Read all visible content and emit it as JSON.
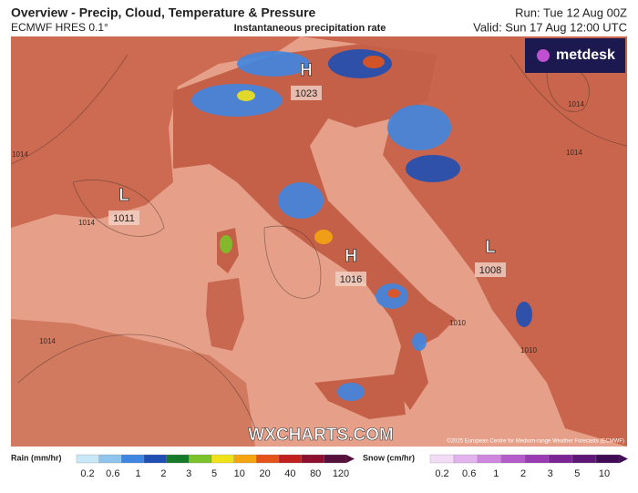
{
  "header": {
    "title": "Overview - Precip, Cloud, Temperature & Pressure",
    "model": "ECMWF HRES 0.1°",
    "subtitle": "Instantaneous precipitation rate",
    "run": "Run: Tue 12 Aug 00Z",
    "valid": "Valid: Sun 17 Aug 12:00 UTC"
  },
  "logo": "metdesk",
  "watermark": "WXCHARTS.COM",
  "credit": "©2025 European Centre for Medium-range Weather Forecasts (ECMWF)",
  "pressure_centers": [
    {
      "type": "H",
      "value": 1023
    },
    {
      "type": "L",
      "value": 1011
    },
    {
      "type": "H",
      "value": 1016
    },
    {
      "type": "L",
      "value": 1008
    }
  ],
  "isobar_labels": [
    1014,
    1014,
    1014,
    1014,
    1010,
    1010,
    1014
  ],
  "legend": {
    "rain": {
      "label": "Rain (mm/hr)",
      "ticks": [
        0.2,
        0.6,
        1,
        2,
        3,
        5,
        10,
        20,
        40,
        80,
        120
      ],
      "colors": [
        "#c9e8f7",
        "#8fc4ef",
        "#3f86e0",
        "#1f4fb4",
        "#157a2a",
        "#7cc22a",
        "#efe21a",
        "#f5a512",
        "#e5531a",
        "#c21f1f",
        "#8e1030",
        "#55103c"
      ]
    },
    "snow": {
      "label": "Snow (cm/hr)",
      "ticks": [
        0.2,
        0.6,
        1,
        2,
        3,
        5,
        10
      ],
      "colors": [
        "#f2dcf5",
        "#e2b3ec",
        "#cf86df",
        "#b55ccb",
        "#9a3bb3",
        "#7c2696",
        "#5e1777",
        "#3f0c55"
      ]
    }
  }
}
